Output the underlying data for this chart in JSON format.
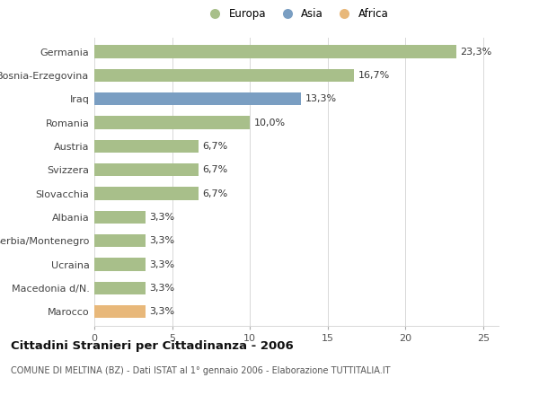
{
  "categories": [
    "Marocco",
    "Macedonia d/N.",
    "Ucraina",
    "Serbia/Montenegro",
    "Albania",
    "Slovacchia",
    "Svizzera",
    "Austria",
    "Romania",
    "Iraq",
    "Bosnia-Erzegovina",
    "Germania"
  ],
  "values": [
    3.3,
    3.3,
    3.3,
    3.3,
    3.3,
    6.7,
    6.7,
    6.7,
    10.0,
    13.3,
    16.7,
    23.3
  ],
  "colors": [
    "#e8b87a",
    "#a8bf8a",
    "#a8bf8a",
    "#a8bf8a",
    "#a8bf8a",
    "#a8bf8a",
    "#a8bf8a",
    "#a8bf8a",
    "#a8bf8a",
    "#7a9ec2",
    "#a8bf8a",
    "#a8bf8a"
  ],
  "labels": [
    "3,3%",
    "3,3%",
    "3,3%",
    "3,3%",
    "3,3%",
    "6,7%",
    "6,7%",
    "6,7%",
    "10,0%",
    "13,3%",
    "16,7%",
    "23,3%"
  ],
  "legend": [
    {
      "label": "Europa",
      "color": "#a8bf8a"
    },
    {
      "label": "Asia",
      "color": "#7a9ec2"
    },
    {
      "label": "Africa",
      "color": "#e8b87a"
    }
  ],
  "xlim": [
    0,
    26
  ],
  "xticks": [
    0,
    5,
    10,
    15,
    20,
    25
  ],
  "title": "Cittadini Stranieri per Cittadinanza - 2006",
  "subtitle": "COMUNE DI MELTINA (BZ) - Dati ISTAT al 1° gennaio 2006 - Elaborazione TUTTITALIA.IT",
  "background_color": "#ffffff",
  "bar_height": 0.55,
  "grid_color": "#d8d8d8",
  "label_fontsize": 8,
  "ytick_fontsize": 8,
  "xtick_fontsize": 8,
  "title_fontsize": 9.5,
  "subtitle_fontsize": 7
}
